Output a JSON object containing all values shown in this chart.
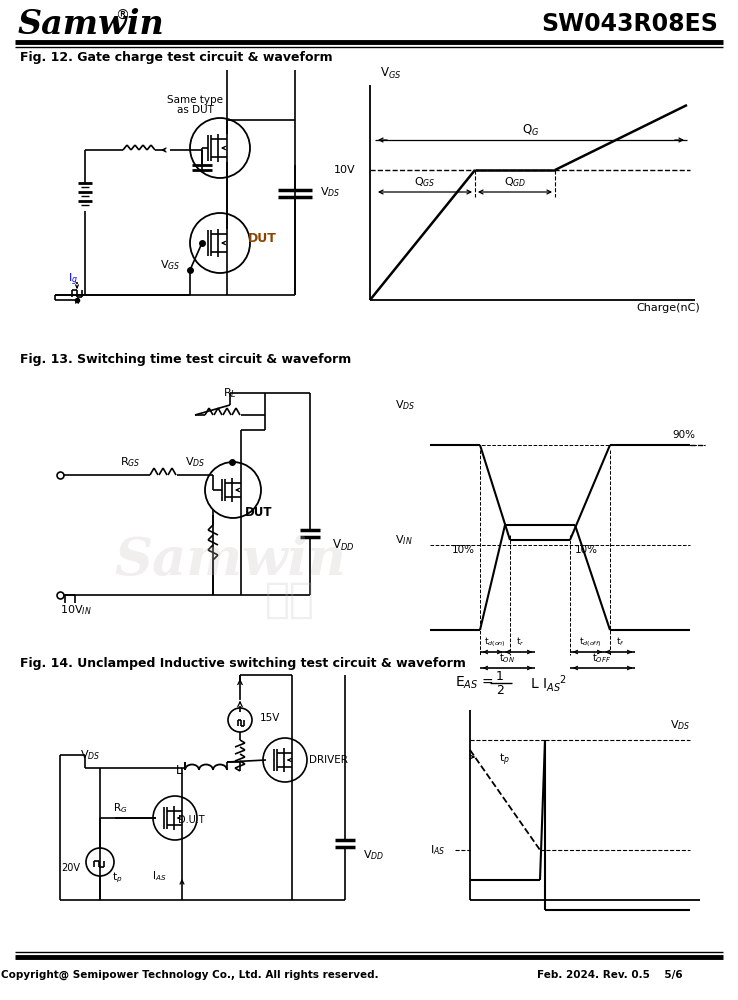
{
  "title_samwin": "Samwin",
  "title_reg": "®",
  "title_part": "SW043R08ES",
  "fig12_label": "Fig. 12. Gate charge test circuit & waveform",
  "fig13_label": "Fig. 13. Switching time test circuit & waveform",
  "fig14_label": "Fig. 14. Unclamped Inductive switching test circuit & waveform",
  "footer_left": "Copyright@ Semipower Technology Co., Ltd. All rights reserved.",
  "footer_right": "Feb. 2024. Rev. 0.5    5/6",
  "bg_color": "#ffffff",
  "text_color": "#000000",
  "dut_color": "#8B4500",
  "watermark_color": "#d0c8be"
}
